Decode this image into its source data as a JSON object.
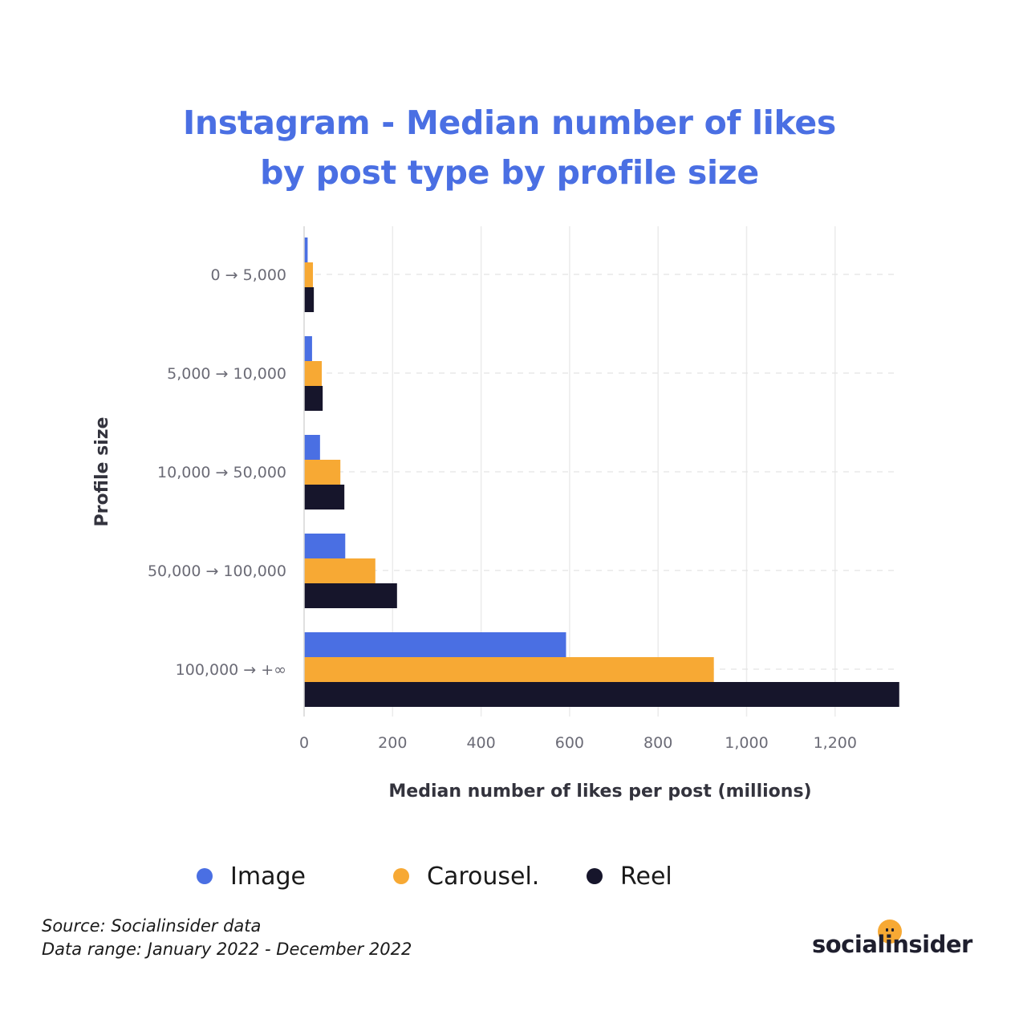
{
  "chart_data": {
    "type": "bar",
    "orientation": "horizontal",
    "title": "Instagram - Median number of likes by post type by profile size",
    "title_lines": [
      "Instagram - Median number of likes",
      "by post type by profile size"
    ],
    "xlabel": "Median number of likes per post (millions)",
    "ylabel": "Profile size",
    "xlim": [
      0,
      1340
    ],
    "xticks": [
      0,
      200,
      400,
      600,
      800,
      1000,
      1200
    ],
    "xtick_labels": [
      "0",
      "200",
      "400",
      "600",
      "800",
      "1,000",
      "1,200"
    ],
    "categories": [
      "0 → 5,000",
      "5,000 → 10,000",
      "10,000 → 50,000",
      "50,000 → 100,000",
      "100,000 → +∞"
    ],
    "series": [
      {
        "name": "Image",
        "color": "#4a6fe3",
        "values": [
          8,
          18,
          36,
          93,
          592
        ]
      },
      {
        "name": "Carousel.",
        "color": "#f7a934",
        "values": [
          20,
          40,
          82,
          161,
          926
        ]
      },
      {
        "name": "Reel",
        "color": "#16152b",
        "values": [
          22,
          42,
          91,
          210,
          1345
        ]
      }
    ],
    "grid": "vertical",
    "legend_position": "bottom"
  },
  "footer": {
    "source": "Source: Socialinsider data",
    "range": "Data range: January 2022 - December 2022"
  },
  "brand": {
    "name": "socialinsider",
    "accent": "#f7a934"
  }
}
